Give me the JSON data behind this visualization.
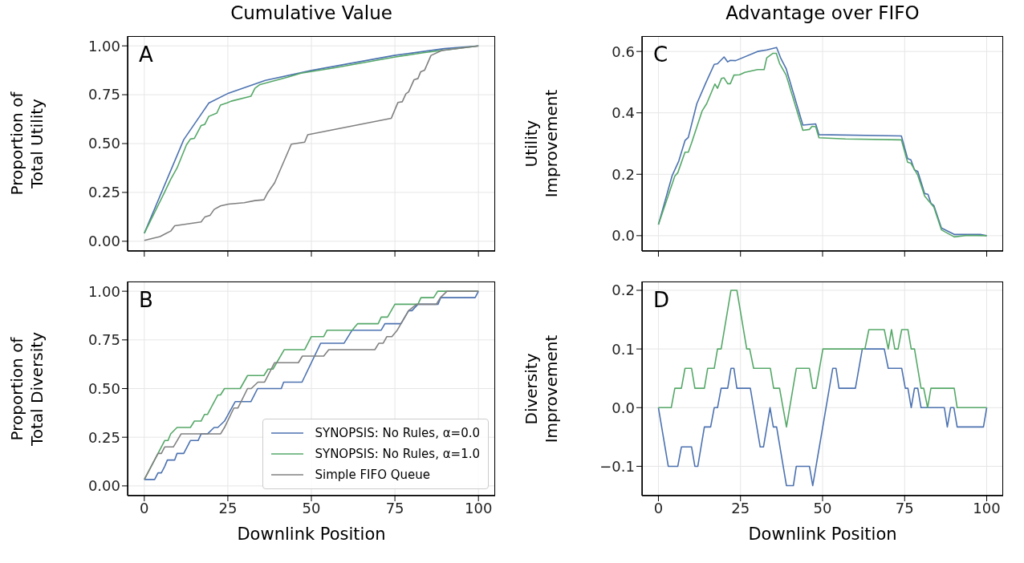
{
  "chart_data": [
    {
      "type": "line",
      "title": "Cumulative Value",
      "ylabel": "Proportion of Total Utility",
      "annotations": [
        "A"
      ],
      "xlim": [
        -5,
        105
      ],
      "xticks": [
        0,
        25,
        50,
        75,
        100
      ],
      "ylim": [
        -0.05,
        1.05
      ],
      "yticks": [
        {
          "value": 0,
          "label": "0.00"
        },
        {
          "value": 0.25,
          "label": "0.25"
        },
        {
          "value": 0.5,
          "label": "0.50"
        },
        {
          "value": 0.75,
          "label": "0.75"
        },
        {
          "value": 1,
          "label": "1.00"
        }
      ],
      "grid": true,
      "tick_labels": "y",
      "series": [
        {
          "color": "#4c72b0",
          "x": [
            0,
            11.8,
            19.3,
            25.2,
            36.2,
            50,
            74.8,
            89.8,
            100
          ],
          "values": [
            0.041,
            0.52,
            0.707,
            0.758,
            0.823,
            0.874,
            0.951,
            0.986,
            1
          ]
        },
        {
          "color": "#55a868",
          "x": [
            0,
            5.9,
            7.9,
            9.8,
            12.6,
            13.8,
            15,
            17,
            18.1,
            19.3,
            21.7,
            22.8,
            24.8,
            26,
            31.9,
            33.1,
            34.6,
            43.3,
            46.9,
            56.7,
            74.8,
            83.5,
            100
          ],
          "values": [
            0.041,
            0.245,
            0.317,
            0.375,
            0.493,
            0.523,
            0.527,
            0.592,
            0.598,
            0.639,
            0.656,
            0.697,
            0.708,
            0.717,
            0.742,
            0.783,
            0.802,
            0.842,
            0.86,
            0.887,
            0.942,
            0.965,
            1
          ]
        },
        {
          "color": "#808080",
          "x": [
            0,
            4.7,
            6.3,
            7.9,
            9.1,
            17,
            18.1,
            19.7,
            20.9,
            22.8,
            25.2,
            29.9,
            33.1,
            35.8,
            37,
            39,
            44,
            48,
            48.9,
            73.9,
            75.9,
            77.2,
            78.3,
            79.1,
            80.7,
            81.9,
            82.7,
            83.9,
            85.8,
            89,
            100
          ],
          "values": [
            0.004,
            0.024,
            0.038,
            0.052,
            0.079,
            0.099,
            0.124,
            0.133,
            0.163,
            0.181,
            0.19,
            0.197,
            0.208,
            0.212,
            0.251,
            0.299,
            0.497,
            0.507,
            0.545,
            0.629,
            0.71,
            0.714,
            0.755,
            0.764,
            0.826,
            0.833,
            0.867,
            0.876,
            0.951,
            0.976,
            1
          ]
        }
      ]
    },
    {
      "type": "line",
      "xlabel": "Downlink Position",
      "ylabel": "Proportion of Total Diversity",
      "annotations": [
        "B"
      ],
      "xlim": [
        -5,
        105
      ],
      "xticks": [
        0,
        25,
        50,
        75,
        100
      ],
      "ylim": [
        -0.05,
        1.05
      ],
      "yticks": [
        {
          "value": 0,
          "label": "0.00"
        },
        {
          "value": 0.25,
          "label": "0.25"
        },
        {
          "value": 0.5,
          "label": "0.50"
        },
        {
          "value": 0.75,
          "label": "0.75"
        },
        {
          "value": 1,
          "label": "1.00"
        }
      ],
      "grid": true,
      "legend": "bottom right",
      "series": [
        {
          "name": "SYNOPSIS: No Rules, α=0.0",
          "color": "#4c72b0",
          "x": [
            0,
            3.1,
            4.1,
            5.1,
            6.1,
            6.9,
            9.1,
            9.8,
            11.8,
            13.8,
            16.1,
            17,
            18.9,
            20.9,
            22,
            24,
            27.2,
            31.9,
            33.9,
            41,
            41.7,
            47.2,
            52.8,
            59.8,
            62.2,
            70.9,
            72,
            76.8,
            79.1,
            80.1,
            81.9,
            87.9,
            88.7,
            99,
            100
          ],
          "values": [
            0.033,
            0.033,
            0.067,
            0.067,
            0.1,
            0.133,
            0.133,
            0.167,
            0.167,
            0.233,
            0.233,
            0.267,
            0.267,
            0.3,
            0.3,
            0.333,
            0.433,
            0.433,
            0.5,
            0.5,
            0.533,
            0.533,
            0.733,
            0.733,
            0.8,
            0.8,
            0.833,
            0.833,
            0.9,
            0.9,
            0.933,
            0.933,
            0.967,
            0.967,
            1
          ]
        },
        {
          "name": "SYNOPSIS: No Rules, α=1.0",
          "color": "#55a868",
          "x": [
            0,
            4.1,
            5.1,
            6.1,
            7.1,
            7.9,
            9.8,
            13.8,
            15,
            17,
            18,
            18.9,
            22,
            22.8,
            24,
            28.7,
            30.9,
            35.8,
            37,
            38.5,
            41.9,
            48,
            50,
            53.7,
            54.7,
            62.2,
            63.8,
            70,
            70.9,
            72.8,
            75,
            81.9,
            82.8,
            86.6,
            87.8,
            100
          ],
          "values": [
            0.033,
            0.167,
            0.2,
            0.233,
            0.233,
            0.267,
            0.3,
            0.3,
            0.333,
            0.333,
            0.367,
            0.367,
            0.467,
            0.467,
            0.5,
            0.5,
            0.567,
            0.567,
            0.6,
            0.6,
            0.7,
            0.7,
            0.767,
            0.767,
            0.8,
            0.8,
            0.833,
            0.833,
            0.867,
            0.867,
            0.933,
            0.933,
            0.967,
            0.967,
            1,
            1
          ]
        },
        {
          "name": "Simple FIFO Queue",
          "color": "#808080",
          "x": [
            0,
            4.1,
            5.1,
            6.1,
            8.7,
            11,
            22.8,
            24,
            26.8,
            28,
            30.9,
            32,
            34,
            36,
            39,
            46.1,
            47.3,
            53.7,
            55.2,
            69,
            70.2,
            71.5,
            72.6,
            74.1,
            75.7,
            79.1,
            81.5,
            87.4,
            88.6,
            90.6,
            100
          ],
          "values": [
            0.033,
            0.167,
            0.167,
            0.2,
            0.2,
            0.267,
            0.267,
            0.3,
            0.4,
            0.4,
            0.5,
            0.5,
            0.533,
            0.533,
            0.633,
            0.633,
            0.667,
            0.667,
            0.7,
            0.7,
            0.733,
            0.733,
            0.767,
            0.767,
            0.8,
            0.9,
            0.933,
            0.933,
            0.967,
            1,
            1
          ]
        }
      ]
    },
    {
      "type": "line",
      "title": "Advantage over FIFO",
      "ylabel": "Utility Improvement",
      "annotations": [
        "C"
      ],
      "xlim": [
        -5,
        105
      ],
      "xticks": [
        0,
        25,
        50,
        75,
        100
      ],
      "ylim": [
        -0.05,
        0.65
      ],
      "yticks": [
        {
          "value": 0,
          "label": "0.0"
        },
        {
          "value": 0.2,
          "label": "0.2"
        },
        {
          "value": 0.4,
          "label": "0.4"
        },
        {
          "value": 0.6,
          "label": "0.6"
        }
      ],
      "grid": true,
      "tick_labels": "y",
      "series": [
        {
          "color": "#4c72b0",
          "x": [
            0,
            4.2,
            6.2,
            8.1,
            9.1,
            11.7,
            14.4,
            17,
            18,
            20,
            21.1,
            21.9,
            23.5,
            30.2,
            33,
            36,
            37.3,
            38.9,
            44,
            47.9,
            48.9,
            74,
            75.9,
            76.9,
            78,
            79,
            81.1,
            82.1,
            83,
            83.9,
            86.2,
            90.1,
            98,
            100
          ],
          "values": [
            0.036,
            0.196,
            0.243,
            0.31,
            0.32,
            0.43,
            0.497,
            0.558,
            0.56,
            0.582,
            0.566,
            0.571,
            0.57,
            0.6,
            0.605,
            0.613,
            0.577,
            0.544,
            0.36,
            0.364,
            0.329,
            0.325,
            0.251,
            0.247,
            0.214,
            0.209,
            0.137,
            0.135,
            0.106,
            0.098,
            0.025,
            0.004,
            0.004,
            0
          ]
        },
        {
          "color": "#55a868",
          "x": [
            0,
            5,
            5.9,
            8.1,
            9.1,
            10.1,
            13.3,
            14.7,
            17.2,
            18,
            19.2,
            20,
            21.1,
            21.9,
            23,
            24.7,
            26.3,
            30.2,
            32.2,
            33,
            34.9,
            35.9,
            36.9,
            38.9,
            44,
            46,
            46.8,
            47.9,
            48.9,
            57,
            74,
            75.9,
            76.9,
            79,
            81.1,
            83.9,
            86.2,
            90.1,
            94,
            100
          ],
          "values": [
            0.036,
            0.194,
            0.205,
            0.272,
            0.272,
            0.302,
            0.406,
            0.43,
            0.494,
            0.48,
            0.512,
            0.514,
            0.495,
            0.495,
            0.523,
            0.524,
            0.532,
            0.541,
            0.541,
            0.579,
            0.594,
            0.594,
            0.561,
            0.523,
            0.343,
            0.346,
            0.356,
            0.355,
            0.319,
            0.315,
            0.312,
            0.239,
            0.236,
            0.197,
            0.129,
            0.093,
            0.019,
            -0.004,
            0.001,
            0
          ]
        }
      ]
    },
    {
      "type": "line",
      "xlabel": "Downlink Position",
      "ylabel": "Diversity Improvement",
      "annotations": [
        "D"
      ],
      "xlim": [
        -5,
        105
      ],
      "xticks": [
        0,
        25,
        50,
        75,
        100
      ],
      "ylim": [
        -0.15,
        0.215
      ],
      "yticks": [
        {
          "value": -0.1,
          "label": "−0.1"
        },
        {
          "value": 0,
          "label": "0.0"
        },
        {
          "value": 0.1,
          "label": "0.1"
        },
        {
          "value": 0.2,
          "label": "0.2"
        }
      ],
      "grid": true,
      "series": [
        {
          "color": "#4c72b0",
          "x": [
            0,
            3,
            5.9,
            7,
            10.1,
            11.1,
            12,
            14,
            15.9,
            17,
            18,
            19.1,
            21.1,
            22.1,
            23,
            23.9,
            28,
            31,
            32,
            34,
            35,
            36,
            39,
            41.1,
            42,
            46,
            47,
            53.1,
            54.1,
            55,
            60,
            62.1,
            68.8,
            70,
            74.1,
            75.2,
            76,
            77,
            78,
            79,
            80,
            87.1,
            88,
            89,
            90,
            91,
            99,
            100
          ],
          "values": [
            0,
            -0.1,
            -0.1,
            -0.067,
            -0.067,
            -0.1,
            -0.1,
            -0.033,
            -0.033,
            0,
            0,
            0.033,
            0.033,
            0.067,
            0.067,
            0.033,
            0.033,
            -0.067,
            -0.067,
            0,
            -0.033,
            -0.033,
            -0.133,
            -0.133,
            -0.1,
            -0.1,
            -0.133,
            0.067,
            0.067,
            0.033,
            0.033,
            0.1,
            0.1,
            0.067,
            0.067,
            0.033,
            0.033,
            0,
            0.033,
            0.033,
            0,
            0,
            -0.033,
            0,
            0,
            -0.033,
            -0.033,
            0
          ]
        },
        {
          "color": "#55a868",
          "x": [
            0,
            3.9,
            5,
            7,
            8.1,
            10.1,
            11.1,
            14,
            15,
            17,
            18,
            19.1,
            22.1,
            23.9,
            26.9,
            27.8,
            29,
            34.1,
            35.1,
            36.9,
            39,
            42,
            46,
            47,
            48,
            50.1,
            62.9,
            64.1,
            68.8,
            70,
            71,
            72,
            73,
            74.1,
            76,
            77,
            78,
            80,
            80.8,
            82,
            83,
            90.1,
            91,
            100
          ],
          "values": [
            0,
            0,
            0.033,
            0.033,
            0.067,
            0.067,
            0.033,
            0.033,
            0.067,
            0.067,
            0.1,
            0.1,
            0.2,
            0.2,
            0.1,
            0.1,
            0.067,
            0.067,
            0.033,
            0.033,
            -0.033,
            0.067,
            0.067,
            0.033,
            0.033,
            0.1,
            0.1,
            0.133,
            0.133,
            0.1,
            0.133,
            0.1,
            0.1,
            0.133,
            0.133,
            0.1,
            0.1,
            0.033,
            0.033,
            0,
            0.033,
            0.033,
            0,
            0
          ]
        }
      ]
    }
  ]
}
